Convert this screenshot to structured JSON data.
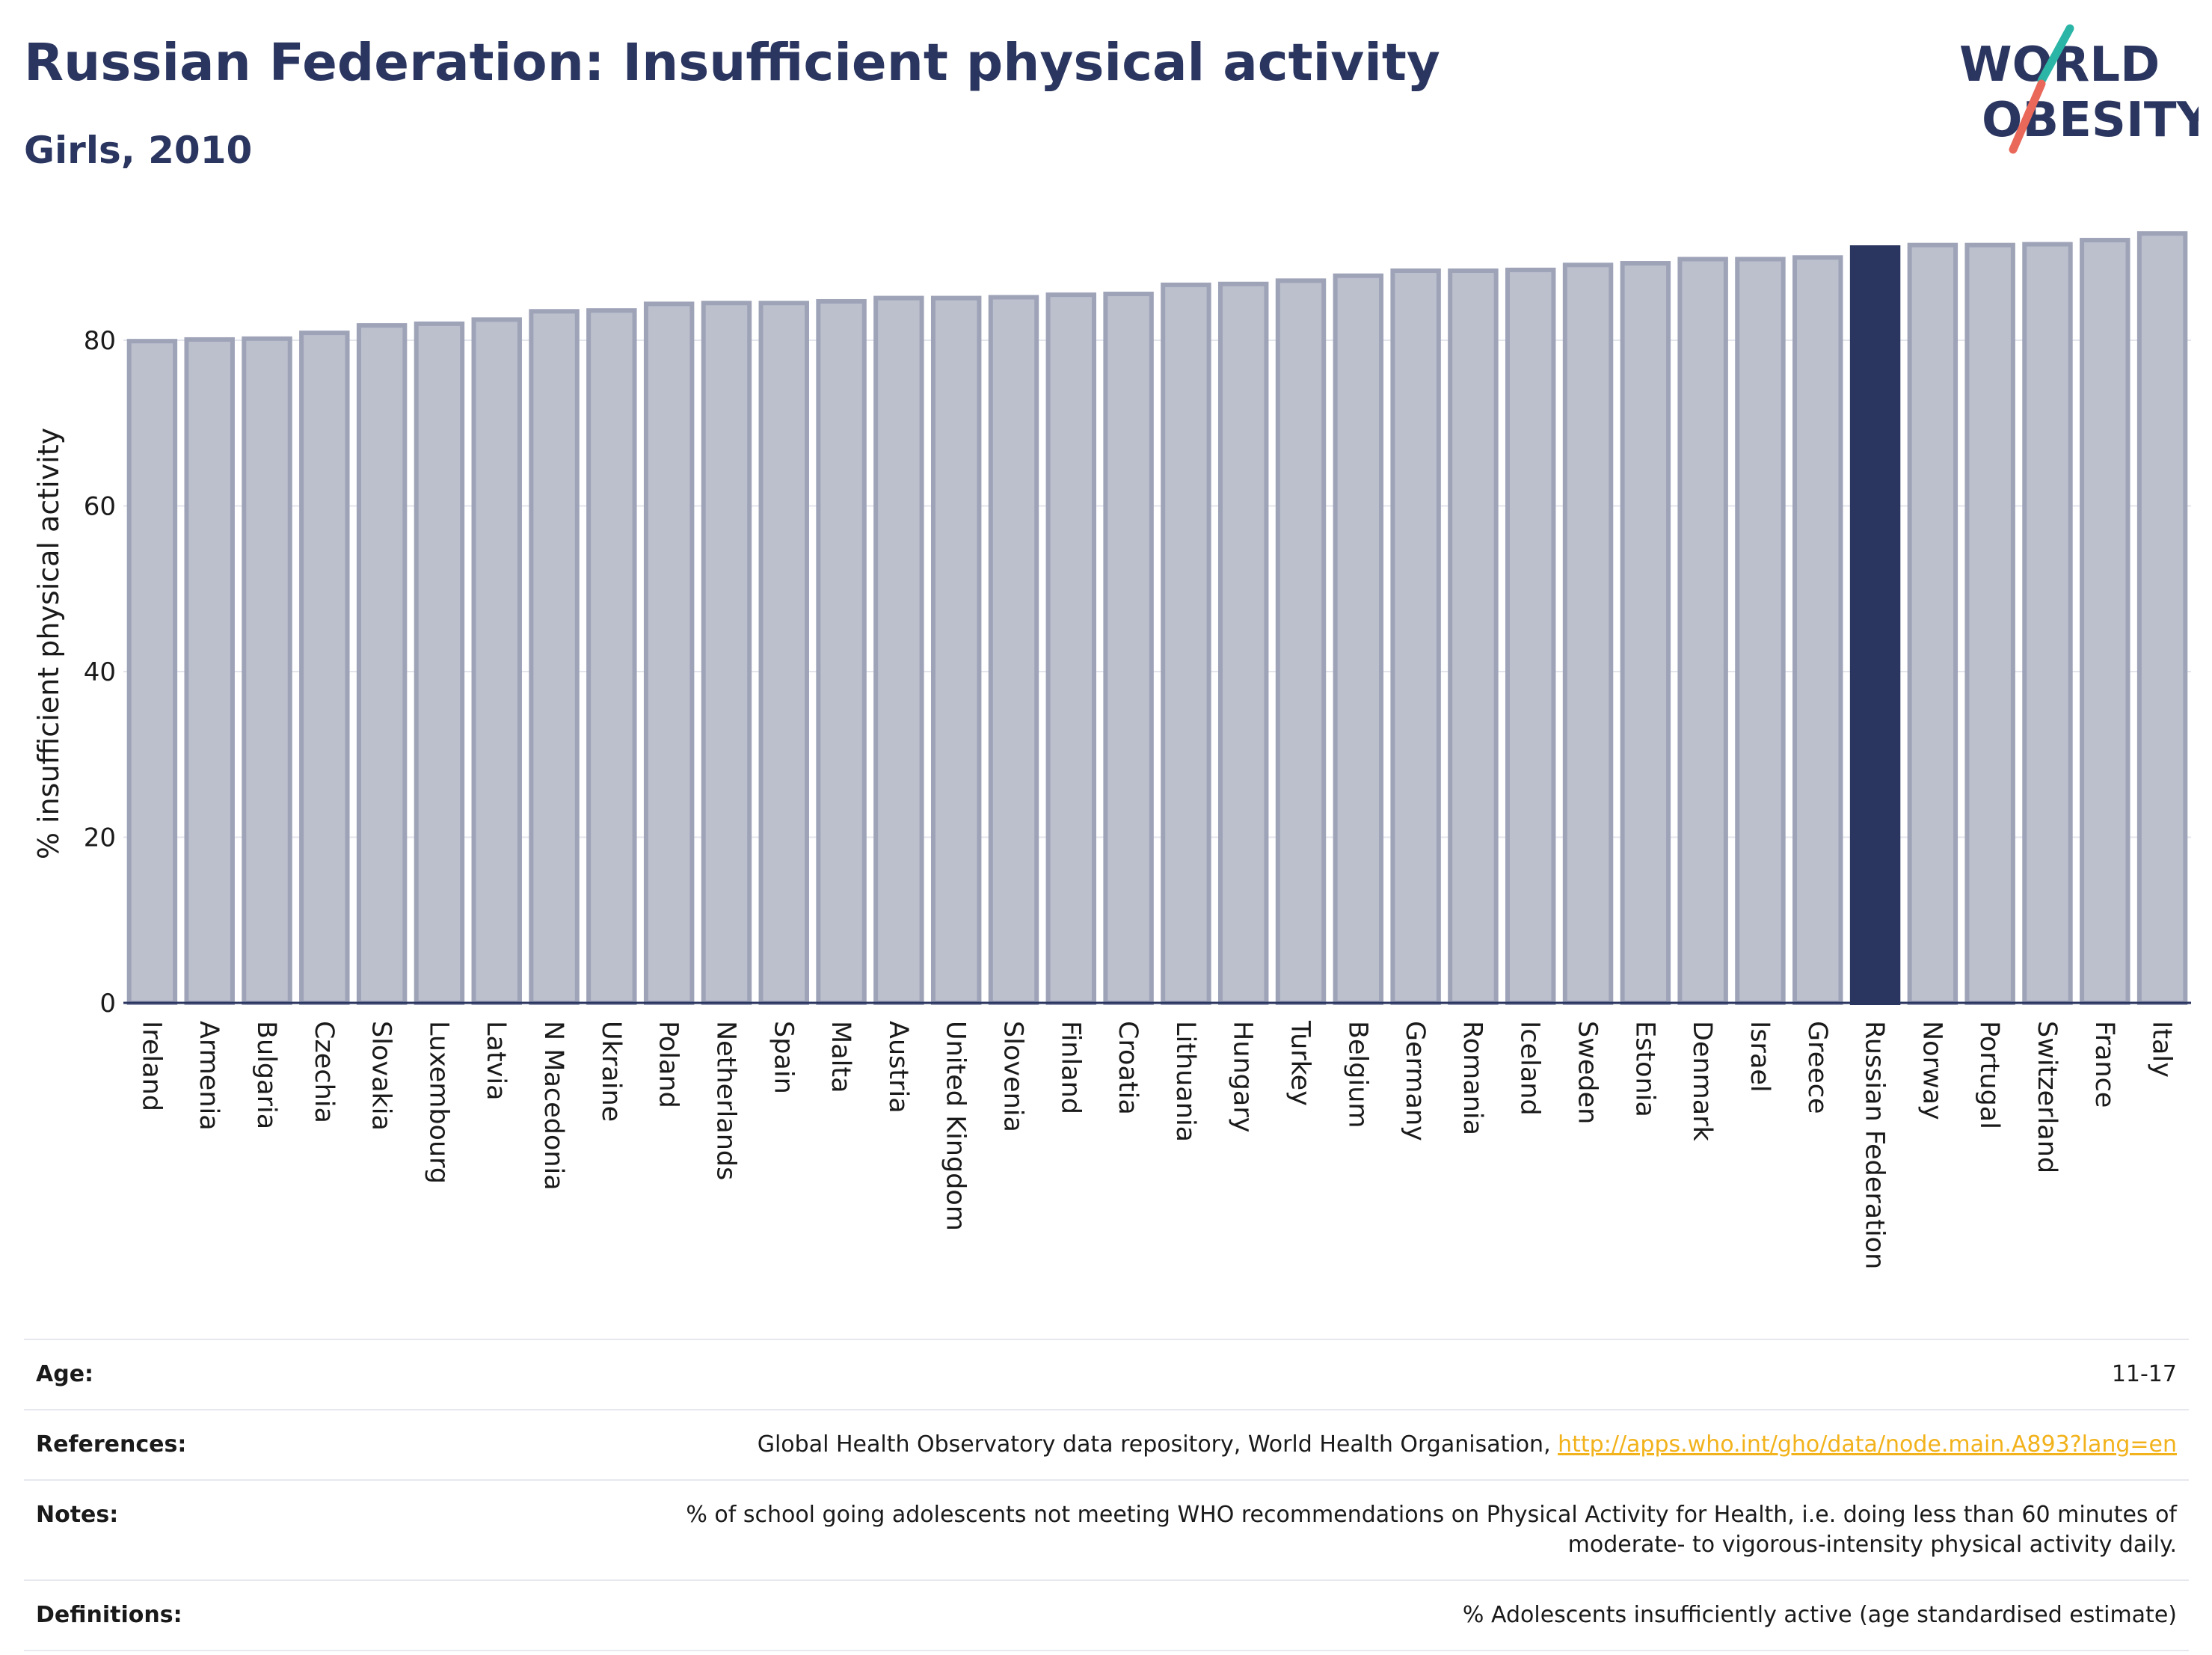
{
  "header": {
    "title": "Russian Federation: Insufficient physical activity",
    "subtitle": "Girls, 2010"
  },
  "logo": {
    "line1": "WORLD",
    "line2": "OBESITY",
    "colors": {
      "text": "#2b3660",
      "teal": "#2bb5a6",
      "coral": "#e9685a"
    }
  },
  "colors": {
    "bar": "#bcc0cd",
    "bar_border": "#9ea3b8",
    "highlight": "#2b3660",
    "axis": "#2b3660",
    "grid": "#e3e5ec"
  },
  "chart_data": {
    "type": "bar",
    "ylabel": "% insufficient physical activity",
    "xlabel": "",
    "ylim": [
      0,
      94
    ],
    "yticks": [
      0,
      20,
      40,
      60,
      80
    ],
    "grid": true,
    "highlight": "Russian Federation",
    "categories": [
      "Ireland",
      "Armenia",
      "Bulgaria",
      "Czechia",
      "Slovakia",
      "Luxembourg",
      "Latvia",
      "N Macedonia",
      "Ukraine",
      "Poland",
      "Netherlands",
      "Spain",
      "Malta",
      "Austria",
      "United Kingdom",
      "Slovenia",
      "Finland",
      "Croatia",
      "Lithuania",
      "Hungary",
      "Turkey",
      "Belgium",
      "Germany",
      "Romania",
      "Iceland",
      "Sweden",
      "Estonia",
      "Denmark",
      "Israel",
      "Greece",
      "Russian Federation",
      "Norway",
      "Portugal",
      "Switzerland",
      "France",
      "Italy"
    ],
    "values": [
      79.9,
      80.1,
      80.2,
      80.9,
      81.8,
      82.0,
      82.5,
      83.5,
      83.6,
      84.4,
      84.5,
      84.5,
      84.7,
      85.1,
      85.1,
      85.2,
      85.5,
      85.6,
      86.7,
      86.8,
      87.2,
      87.8,
      88.4,
      88.4,
      88.5,
      89.1,
      89.3,
      89.8,
      89.8,
      90.0,
      91.2,
      91.5,
      91.5,
      91.6,
      92.1,
      92.9
    ]
  },
  "info": {
    "age_label": "Age:",
    "age_value": "11-17",
    "references_label": "References:",
    "references_text": "Global Health Observatory data repository, World Health Organisation, ",
    "references_link": "http://apps.who.int/gho/data/node.main.A893?lang=en",
    "notes_label": "Notes:",
    "notes_line1": "% of school going adolescents not meeting WHO recommendations on Physical Activity for Health, i.e. doing less than 60 minutes of",
    "notes_line2": "moderate- to vigorous-intensity physical activity daily.",
    "definitions_label": "Definitions:",
    "definitions_value": "% Adolescents insufficiently active (age standardised estimate)"
  }
}
